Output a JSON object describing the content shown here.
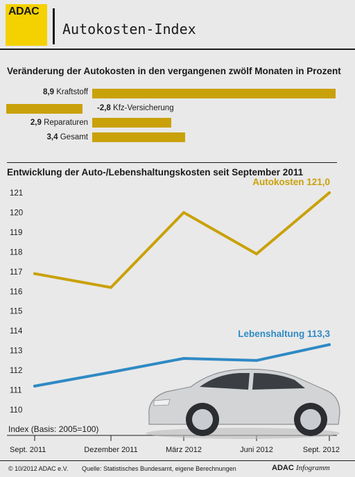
{
  "header": {
    "logo": "ADAC",
    "title": "Autokosten-Index"
  },
  "bars_section": {
    "title": "Veränderung der Autokosten in den vergangenen zwölf Monaten in Prozent",
    "items": [
      {
        "value": "8,9",
        "label": "Kraftstoff"
      },
      {
        "value": "-2,8",
        "label": "Kfz-Versicherung"
      },
      {
        "value": "2,9",
        "label": "Reparaturen"
      },
      {
        "value": "3,4",
        "label": "Gesamt"
      }
    ]
  },
  "line_section": {
    "title": "Entwicklung der Auto-/Lebenshaltungskosten seit September 2011",
    "index_note": "Index (Basis: 2005=100)"
  },
  "chart_data": [
    {
      "type": "bar",
      "title": "Veränderung der Autokosten in den vergangenen zwölf Monaten in Prozent",
      "categories": [
        "Kraftstoff",
        "Kfz-Versicherung",
        "Reparaturen",
        "Gesamt"
      ],
      "values": [
        8.9,
        -2.8,
        2.9,
        3.4
      ],
      "color": "#c9a10a"
    },
    {
      "type": "line",
      "title": "Entwicklung der Auto-/Lebenshaltungskosten seit September 2011",
      "x": [
        "Sept. 2011",
        "Dezember 2011",
        "März 2012",
        "Juni 2012",
        "Sept. 2012"
      ],
      "ylim": [
        110,
        121
      ],
      "yticks": [
        110,
        111,
        112,
        113,
        114,
        115,
        116,
        117,
        118,
        119,
        120,
        121
      ],
      "series": [
        {
          "name": "Autokosten",
          "end_label": "121,0",
          "values": [
            116.9,
            116.2,
            120.0,
            117.9,
            121.0
          ],
          "color": "#c9a10a"
        },
        {
          "name": "Lebenshaltung",
          "end_label": "113,3",
          "values": [
            111.2,
            111.9,
            112.6,
            112.5,
            113.3
          ],
          "color": "#2f8ac4"
        }
      ],
      "grid": false
    }
  ],
  "footer": {
    "copyright": "© 10/2012 ADAC e.V.",
    "source": "Quelle: Statistisches Bundesamt, eigene Berechnungen",
    "brand": "ADAC",
    "brand_italic": "Infogramm"
  }
}
